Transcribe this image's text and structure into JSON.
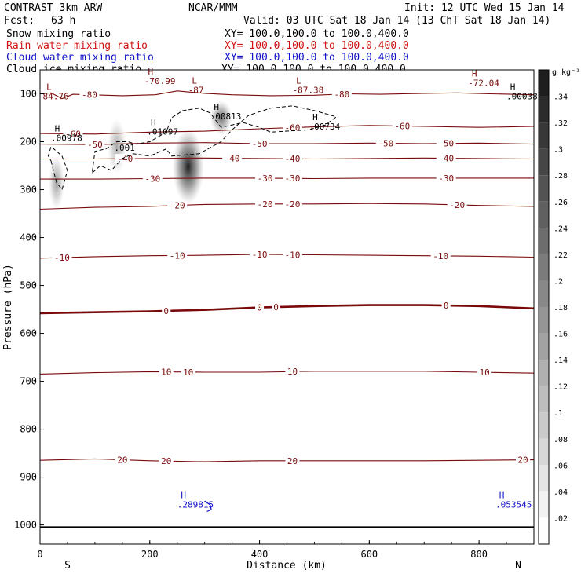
{
  "header": {
    "model": "CONTRAST  3km ARW",
    "center": "NCAR/MMM",
    "init": "Init: 12 UTC Wed 15 Jan 14",
    "fcst_label": "Fcst:",
    "fcst_value": "63 h",
    "valid": "Valid: 03 UTC Sat 18 Jan 14 (13 ChT Sat 18 Jan 14)"
  },
  "fields": [
    {
      "name": "Snow mixing ratio",
      "xy": "XY= 100.0,100.0 to 100.0,400.0",
      "color": "#000000"
    },
    {
      "name": "Rain water mixing ratio",
      "xy": "XY= 100.0,100.0 to 100.0,400.0",
      "color": "#d01010"
    },
    {
      "name": "Cloud water mixing ratio",
      "xy": "XY= 100.0,100.0 to 100.0,400.0",
      "color": "#1010c8"
    },
    {
      "name": "Cloud ice mixing ratio",
      "xy": "XY= 100.0,100.0 to 100.0,400.0",
      "color": "#000000"
    }
  ],
  "colors": {
    "temperature": "#7a0a0a",
    "snow_shade": "#1a1a1a",
    "cloud_water": "#1010c8",
    "cloud_ice": "#000000",
    "surface": "#000000"
  },
  "chart_data": {
    "type": "cross-section",
    "xlabel": "Distance (km)",
    "ylabel": "Pressure (hPa)",
    "xlim": [
      0,
      900
    ],
    "ylim": [
      1040,
      50
    ],
    "xticks": [
      "0",
      "200",
      "400",
      "600",
      "800"
    ],
    "yticks": [
      "100",
      "200",
      "300",
      "400",
      "500",
      "600",
      "700",
      "800",
      "900",
      "1000"
    ],
    "end_labels": {
      "left": "S",
      "right": "N"
    },
    "colorbar": {
      "unit": "g kg⁻¹",
      "ticks": [
        ".02",
        ".04",
        ".06",
        ".08",
        ".1",
        ".12",
        ".14",
        ".16",
        ".18",
        ".2",
        ".22",
        ".24",
        ".26",
        ".28",
        ".3",
        ".32",
        ".34"
      ],
      "max": 0.36
    },
    "temperature_contours": [
      {
        "value": -80,
        "points": [
          [
            0,
            100
          ],
          [
            20,
            98
          ],
          [
            40,
            110
          ],
          [
            60,
            101
          ],
          [
            150,
            104
          ],
          [
            210,
            102
          ],
          [
            250,
            94
          ],
          [
            300,
            99
          ],
          [
            350,
            102
          ],
          [
            420,
            104
          ],
          [
            500,
            103
          ],
          [
            560,
            100
          ],
          [
            620,
            101
          ],
          [
            700,
            99
          ],
          [
            760,
            98
          ],
          [
            820,
            100
          ],
          [
            900,
            102
          ]
        ],
        "labels": [
          {
            "x": 90,
            "text": "-80"
          },
          {
            "x": 550,
            "text": "-80"
          }
        ]
      },
      {
        "value": -60,
        "points": [
          [
            0,
            183
          ],
          [
            100,
            184
          ],
          [
            200,
            180
          ],
          [
            300,
            178
          ],
          [
            400,
            173
          ],
          [
            500,
            169
          ],
          [
            600,
            166
          ],
          [
            700,
            168
          ],
          [
            800,
            170
          ],
          [
            900,
            168
          ]
        ],
        "labels": [
          {
            "x": 60,
            "text": "-60"
          },
          {
            "x": 460,
            "text": "-60"
          },
          {
            "x": 660,
            "text": "-60"
          }
        ]
      },
      {
        "value": -50,
        "points": [
          [
            0,
            205
          ],
          [
            100,
            206
          ],
          [
            200,
            203
          ],
          [
            300,
            202
          ],
          [
            400,
            204
          ],
          [
            500,
            204
          ],
          [
            600,
            203
          ],
          [
            700,
            204
          ],
          [
            800,
            203
          ],
          [
            900,
            205
          ]
        ],
        "labels": [
          {
            "x": 100,
            "text": "-50"
          },
          {
            "x": 400,
            "text": "-50"
          },
          {
            "x": 630,
            "text": "-50"
          },
          {
            "x": 740,
            "text": "-50"
          }
        ]
      },
      {
        "value": -40,
        "points": [
          [
            0,
            236
          ],
          [
            100,
            236
          ],
          [
            200,
            235
          ],
          [
            300,
            234
          ],
          [
            400,
            235
          ],
          [
            500,
            236
          ],
          [
            600,
            235
          ],
          [
            700,
            234
          ],
          [
            800,
            235
          ],
          [
            900,
            236
          ]
        ],
        "labels": [
          {
            "x": 155,
            "text": "-40"
          },
          {
            "x": 350,
            "text": "-40"
          },
          {
            "x": 460,
            "text": "-40"
          },
          {
            "x": 740,
            "text": "-40"
          }
        ]
      },
      {
        "value": -30,
        "points": [
          [
            0,
            278
          ],
          [
            100,
            278
          ],
          [
            200,
            277
          ],
          [
            300,
            276
          ],
          [
            400,
            276
          ],
          [
            500,
            277
          ],
          [
            600,
            276
          ],
          [
            700,
            276
          ],
          [
            800,
            276
          ],
          [
            900,
            276
          ]
        ],
        "labels": [
          {
            "x": 205,
            "text": "-30"
          },
          {
            "x": 410,
            "text": "-30"
          },
          {
            "x": 460,
            "text": "-30"
          },
          {
            "x": 740,
            "text": "-30"
          }
        ]
      },
      {
        "value": -20,
        "points": [
          [
            0,
            341
          ],
          [
            100,
            337
          ],
          [
            200,
            335
          ],
          [
            300,
            331
          ],
          [
            400,
            330
          ],
          [
            500,
            330
          ],
          [
            600,
            329
          ],
          [
            700,
            330
          ],
          [
            800,
            333
          ],
          [
            900,
            335
          ]
        ],
        "labels": [
          {
            "x": 250,
            "text": "-20"
          },
          {
            "x": 410,
            "text": "-20"
          },
          {
            "x": 460,
            "text": "-20"
          },
          {
            "x": 760,
            "text": "-20"
          }
        ]
      },
      {
        "value": -10,
        "points": [
          [
            0,
            443
          ],
          [
            100,
            440
          ],
          [
            200,
            438
          ],
          [
            300,
            437
          ],
          [
            400,
            435
          ],
          [
            500,
            436
          ],
          [
            600,
            437
          ],
          [
            700,
            438
          ],
          [
            800,
            439
          ],
          [
            900,
            441
          ]
        ],
        "labels": [
          {
            "x": 40,
            "text": "-10"
          },
          {
            "x": 250,
            "text": "-10"
          },
          {
            "x": 400,
            "text": "-10"
          },
          {
            "x": 460,
            "text": "-10"
          },
          {
            "x": 730,
            "text": "-10"
          }
        ]
      },
      {
        "value": 0,
        "points": [
          [
            0,
            558
          ],
          [
            100,
            556
          ],
          [
            200,
            554
          ],
          [
            300,
            551
          ],
          [
            400,
            546
          ],
          [
            500,
            543
          ],
          [
            600,
            541
          ],
          [
            700,
            541
          ],
          [
            800,
            543
          ],
          [
            900,
            548
          ]
        ],
        "labels": [
          {
            "x": 230,
            "text": "0"
          },
          {
            "x": 400,
            "text": "0"
          },
          {
            "x": 430,
            "text": "0"
          },
          {
            "x": 740,
            "text": "0"
          }
        ],
        "bold": true
      },
      {
        "value": 10,
        "points": [
          [
            0,
            685
          ],
          [
            100,
            682
          ],
          [
            200,
            680
          ],
          [
            300,
            681
          ],
          [
            400,
            681
          ],
          [
            500,
            679
          ],
          [
            600,
            679
          ],
          [
            700,
            679
          ],
          [
            800,
            681
          ],
          [
            900,
            683
          ]
        ],
        "labels": [
          {
            "x": 230,
            "text": "10"
          },
          {
            "x": 270,
            "text": "10"
          },
          {
            "x": 460,
            "text": "10"
          },
          {
            "x": 810,
            "text": "10"
          }
        ]
      },
      {
        "value": 20,
        "points": [
          [
            0,
            865
          ],
          [
            100,
            862
          ],
          [
            200,
            866
          ],
          [
            300,
            868
          ],
          [
            400,
            866
          ],
          [
            500,
            866
          ],
          [
            600,
            866
          ],
          [
            700,
            866
          ],
          [
            800,
            865
          ],
          [
            900,
            864
          ]
        ],
        "labels": [
          {
            "x": 150,
            "text": "20"
          },
          {
            "x": 230,
            "text": "20"
          },
          {
            "x": 460,
            "text": "20"
          },
          {
            "x": 880,
            "text": "20"
          }
        ]
      }
    ],
    "cloud_ice_outline": [
      [
        20,
        240
      ],
      [
        30,
        285
      ],
      [
        40,
        300
      ],
      [
        50,
        260
      ],
      [
        40,
        230
      ],
      [
        20,
        210
      ],
      [
        15,
        230
      ]
    ],
    "cloud_ice_outline_2": [
      [
        95,
        265
      ],
      [
        110,
        250
      ],
      [
        130,
        260
      ],
      [
        150,
        235
      ],
      [
        170,
        225
      ],
      [
        200,
        230
      ],
      [
        230,
        215
      ],
      [
        240,
        230
      ],
      [
        290,
        225
      ],
      [
        330,
        200
      ],
      [
        350,
        175
      ],
      [
        380,
        145
      ],
      [
        420,
        130
      ],
      [
        460,
        125
      ],
      [
        500,
        135
      ],
      [
        540,
        148
      ],
      [
        520,
        165
      ],
      [
        490,
        175
      ],
      [
        420,
        180
      ],
      [
        400,
        170
      ],
      [
        370,
        160
      ],
      [
        330,
        170
      ],
      [
        310,
        140
      ],
      [
        290,
        130
      ],
      [
        260,
        135
      ],
      [
        240,
        150
      ],
      [
        230,
        180
      ],
      [
        200,
        200
      ],
      [
        175,
        205
      ],
      [
        160,
        200
      ],
      [
        140,
        200
      ],
      [
        120,
        215
      ],
      [
        100,
        220
      ]
    ],
    "snow_maxima": [
      {
        "x": 270,
        "p": 252,
        "rx": 20,
        "ry": 48,
        "value": 0.34
      },
      {
        "x": 330,
        "p": 150,
        "rx": 14,
        "ry": 22,
        "value": 0.2
      },
      {
        "x": 30,
        "p": 285,
        "rx": 10,
        "ry": 35,
        "value": 0.12
      },
      {
        "x": 140,
        "p": 210,
        "rx": 12,
        "ry": 35,
        "value": 0.1
      }
    ],
    "extrema_labels": [
      {
        "x": 5,
        "p": 100,
        "marker": "L",
        "value": "84.76",
        "color": "#7a0a0a"
      },
      {
        "x": 190,
        "p": 68,
        "marker": "H",
        "value": "-70.99",
        "color": "#7a0a0a"
      },
      {
        "x": 270,
        "p": 87,
        "marker": "L",
        "value": "-87",
        "color": "#7a0a0a"
      },
      {
        "x": 460,
        "p": 87,
        "marker": "L",
        "value": "-87.38",
        "color": "#7a0a0a"
      },
      {
        "x": 780,
        "p": 72,
        "marker": "H",
        "value": "-72.04",
        "color": "#7a0a0a"
      },
      {
        "x": 850,
        "p": 100,
        "marker": "H",
        "value": ".00038",
        "color": "#000000"
      },
      {
        "x": 310,
        "p": 142,
        "marker": "H",
        "value": ".00813",
        "color": "#000000"
      },
      {
        "x": 490,
        "p": 163,
        "marker": "H",
        "value": ".00734",
        "color": "#000000"
      },
      {
        "x": 20,
        "p": 187,
        "marker": "H",
        "value": ".00978",
        "color": "#000000"
      },
      {
        "x": 195,
        "p": 174,
        "marker": "H",
        "value": ".01097",
        "color": "#000000"
      },
      {
        "x": 135,
        "p": 207,
        "marker": "",
        "value": ".001",
        "color": "#000000"
      },
      {
        "x": 250,
        "p": 952,
        "marker": "H",
        "value": ".289815",
        "color": "#1010c8"
      },
      {
        "x": 830,
        "p": 952,
        "marker": "H",
        "value": ".053545",
        "color": "#1010c8"
      }
    ],
    "cloud_water_outline": [
      [
        300,
        950
      ],
      [
        310,
        958
      ],
      [
        312,
        968
      ],
      [
        304,
        972
      ]
    ],
    "surface_pressure": 1005
  }
}
